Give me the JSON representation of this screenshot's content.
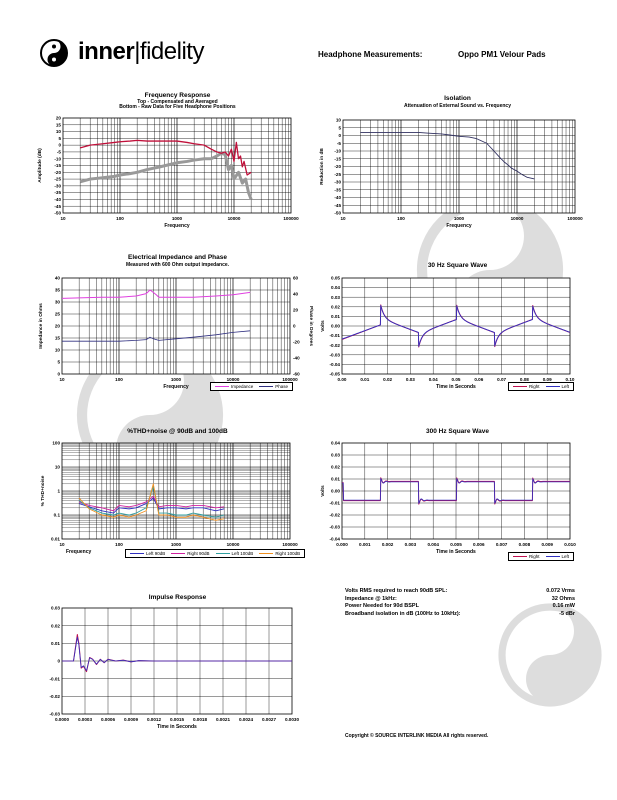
{
  "header": {
    "brand_left": "inner",
    "brand_right": "fidelity",
    "measurements_label": "Headphone Measurements:",
    "product": "Oppo PM1 Velour Pads"
  },
  "charts": {
    "freq": {
      "title": "Frequency Response",
      "subtitle1": "Top - Compensated and Averaged",
      "subtitle2": "Bottom - Raw Data for Five Headphone Positions",
      "ylabel": "Amplitude (dB)",
      "xlabel": "Frequency"
    },
    "iso": {
      "title": "Isolation",
      "subtitle1": "Attenuation of External Sound vs. Frequency",
      "ylabel": "Reduction in dB",
      "xlabel": "Frequency"
    },
    "imp": {
      "title": "Electrical Impedance and Phase",
      "subtitle1": "Measured with 600 Ohm output impedance.",
      "ylabel": "Impedance in Ohms",
      "ylabel2": "Phase in Degrees",
      "xlabel": "Frequency",
      "legend_impedance": "Impedance",
      "legend_phase": "Phase"
    },
    "sq30": {
      "title": "30 Hz Square Wave",
      "ylabel": "Volts",
      "xlabel": "Time in Seconds",
      "legend_right": "Right",
      "legend_left": "Left"
    },
    "thd": {
      "title": "%THD+noise @ 90dB and 100dB",
      "ylabel": "% THD+noise",
      "xlabel": "Frequency",
      "legend": [
        "Left 90dB",
        "Right 90dB",
        "Left 100dB",
        "Right 100dB"
      ]
    },
    "sq300": {
      "title": "300 Hz Square Wave",
      "ylabel": "Volts",
      "xlabel": "Time in Seconds",
      "legend_right": "Right",
      "legend_left": "Left"
    },
    "imp_resp": {
      "title": "Impulse Response",
      "xlabel": "Time in Seconds"
    }
  },
  "specs": [
    {
      "label": "Volts RMS required to reach 90dB SPL:",
      "value": "0.072 Vrms"
    },
    {
      "label": "Impedance @ 1kHz:",
      "value": "32 Ohms"
    },
    {
      "label": "Power Needed for 90d BSPL",
      "value": "0.16 mW"
    },
    {
      "label": "Broadband isolation in dB (100Hz to 10kHz):",
      "value": "-5 dBr"
    }
  ],
  "copyright": "Copyright © SOURCE INTERLINK MEDIA All rights reserved.",
  "colors": {
    "compensated": "#c0103a",
    "raw": "#999999",
    "left": "#3030c0",
    "right": "#c01050",
    "impedance": "#e040e0",
    "phase": "#303080",
    "thd_left90": "#3030c0",
    "thd_right90": "#d020a0",
    "thd_left100": "#30a0a0",
    "thd_right100": "#f09020"
  },
  "chart_data": [
    {
      "id": "freq",
      "type": "line",
      "xscale": "log",
      "xlim": [
        10,
        100000
      ],
      "ylim": [
        -50,
        20
      ],
      "xticks": [
        "10",
        "100",
        "1000",
        "10000",
        "100000"
      ],
      "yticks": [
        "20",
        "15",
        "10",
        "5",
        "0",
        "-5",
        "-10",
        "-15",
        "-20",
        "-25",
        "-30",
        "-35",
        "-40",
        "-45",
        "-50"
      ],
      "series": [
        {
          "role": "compensated",
          "x": [
            20,
            30,
            50,
            80,
            100,
            150,
            200,
            300,
            500,
            800,
            1000,
            1500,
            2000,
            3000,
            4000,
            5000,
            6000,
            7000,
            8000,
            9000,
            10000,
            11000,
            12000,
            13000,
            14000,
            15000,
            17000,
            20000
          ],
          "y": [
            -2,
            0,
            1,
            2,
            2.5,
            3,
            3.5,
            3,
            3,
            3,
            3,
            2,
            1,
            0,
            -3,
            -5,
            -6,
            -5,
            -8,
            -3,
            -12,
            2,
            -10,
            -8,
            -16,
            -12,
            -22,
            -20
          ]
        },
        {
          "role": "raw",
          "x": [
            20,
            30,
            50,
            80,
            100,
            150,
            200,
            300,
            500,
            800,
            1000,
            1500,
            2000,
            3000,
            4000,
            5000,
            6000,
            7000,
            8000,
            9000,
            10000,
            12000,
            14000,
            16000,
            18000,
            20000
          ],
          "y": [
            -27,
            -25,
            -24,
            -23,
            -22,
            -21,
            -20,
            -18,
            -16,
            -14,
            -13,
            -12,
            -11,
            -10,
            -10,
            -8,
            -6,
            -7,
            -18,
            -15,
            -25,
            -20,
            -28,
            -25,
            -35,
            -40
          ]
        }
      ]
    },
    {
      "id": "iso",
      "type": "line",
      "xscale": "log",
      "xlim": [
        10,
        100000
      ],
      "ylim": [
        -50,
        10
      ],
      "xticks": [
        "10",
        "100",
        "1000",
        "10000",
        "100000"
      ],
      "yticks": [
        "10",
        "5",
        "0",
        "-5",
        "-10",
        "-15",
        "-20",
        "-25",
        "-30",
        "-35",
        "-40",
        "-45",
        "-50"
      ],
      "series": [
        {
          "role": "isolation",
          "x": [
            20,
            30,
            50,
            100,
            200,
            300,
            500,
            800,
            1000,
            1500,
            2000,
            3000,
            4000,
            5000,
            6000,
            7000,
            8000,
            10000,
            12000,
            15000,
            20000
          ],
          "y": [
            2,
            2,
            2,
            2,
            2,
            1.5,
            1,
            0,
            -0.5,
            -1,
            -2,
            -5,
            -10,
            -14,
            -17,
            -19,
            -21,
            -23,
            -25,
            -27,
            -28
          ]
        }
      ]
    },
    {
      "id": "imp",
      "type": "line",
      "xscale": "log",
      "xlim": [
        10,
        100000
      ],
      "ylim": [
        0,
        40
      ],
      "y2lim": [
        -60,
        60
      ],
      "xticks": [
        "10",
        "100",
        "1000",
        "10000",
        "100000"
      ],
      "yticks": [
        "40",
        "35",
        "30",
        "25",
        "20",
        "15",
        "10",
        "5",
        "0"
      ],
      "y2ticks": [
        "60",
        "40",
        "20",
        "0",
        "-20",
        "-40",
        "-60"
      ],
      "series": [
        {
          "name": "Impedance",
          "axis": "y",
          "x": [
            10,
            20,
            50,
            100,
            200,
            300,
            350,
            400,
            450,
            500,
            700,
            1000,
            2000,
            5000,
            10000,
            20000
          ],
          "y": [
            31.5,
            31.7,
            32,
            32,
            32.5,
            33.5,
            35,
            34,
            33,
            32,
            32,
            32,
            32,
            32.5,
            33,
            34
          ]
        },
        {
          "name": "Phase",
          "axis": "y2",
          "x": [
            10,
            20,
            50,
            100,
            200,
            300,
            350,
            400,
            450,
            500,
            700,
            1000,
            2000,
            5000,
            10000,
            20000
          ],
          "y": [
            -19,
            -19,
            -19,
            -19,
            -18,
            -17,
            -14,
            -16,
            -17,
            -18,
            -17,
            -16,
            -14,
            -11,
            -8,
            -6
          ]
        }
      ]
    },
    {
      "id": "sq30",
      "type": "line",
      "xlim": [
        0,
        0.1
      ],
      "ylim": [
        -0.05,
        0.05
      ],
      "xticks": [
        "0.00",
        "0.01",
        "0.02",
        "0.03",
        "0.04",
        "0.05",
        "0.06",
        "0.07",
        "0.08",
        "0.09",
        "0.10"
      ],
      "yticks": [
        "0.05",
        "0.04",
        "0.03",
        "0.02",
        "0.01",
        "0.00",
        "-0.01",
        "-0.02",
        "-0.03",
        "-0.04",
        "-0.05"
      ],
      "period": 0.0333,
      "shape": {
        "peak": 0.022,
        "settle": 0.008,
        "trough": -0.022,
        "settle_neg": -0.008,
        "first_edge": 0.017
      }
    },
    {
      "id": "thd",
      "type": "line",
      "xscale": "log",
      "yscale": "log",
      "xlim": [
        10,
        100000
      ],
      "ylim": [
        0.01,
        100
      ],
      "xticks": [
        "10",
        "100",
        "1000",
        "10000",
        "100000"
      ],
      "yticks": [
        "100",
        "10",
        "1",
        "0.1",
        "0.01"
      ],
      "series": [
        {
          "name": "Left 90dB",
          "x": [
            20,
            30,
            50,
            80,
            100,
            150,
            200,
            300,
            400,
            500,
            700,
            1000,
            1500,
            2000,
            3000,
            5000,
            7000
          ],
          "y": [
            0.3,
            0.22,
            0.15,
            0.12,
            0.2,
            0.18,
            0.2,
            0.3,
            0.5,
            0.18,
            0.2,
            0.2,
            0.18,
            0.2,
            0.2,
            0.15,
            0.18
          ]
        },
        {
          "name": "Right 90dB",
          "x": [
            20,
            30,
            50,
            80,
            100,
            150,
            200,
            300,
            400,
            500,
            700,
            1000,
            1500,
            2000,
            3000,
            5000,
            7000
          ],
          "y": [
            0.35,
            0.25,
            0.2,
            0.15,
            0.25,
            0.22,
            0.25,
            0.35,
            0.6,
            0.22,
            0.25,
            0.25,
            0.22,
            0.25,
            0.25,
            0.2,
            0.22
          ]
        },
        {
          "name": "Left 100dB",
          "x": [
            20,
            30,
            50,
            80,
            100,
            150,
            200,
            300,
            400,
            500,
            700,
            1000,
            1500,
            2000,
            3000,
            5000,
            7000
          ],
          "y": [
            0.4,
            0.2,
            0.12,
            0.1,
            0.12,
            0.1,
            0.12,
            0.2,
            1.5,
            0.12,
            0.12,
            0.1,
            0.1,
            0.12,
            0.1,
            0.08,
            0.1
          ]
        },
        {
          "name": "Right 100dB",
          "x": [
            20,
            30,
            50,
            80,
            100,
            150,
            200,
            300,
            400,
            500,
            700,
            1000,
            1500,
            2000,
            3000,
            5000,
            7000
          ],
          "y": [
            0.5,
            0.18,
            0.1,
            0.08,
            0.1,
            0.08,
            0.1,
            0.15,
            2,
            0.1,
            0.1,
            0.08,
            0.08,
            0.1,
            0.08,
            0.06,
            0.07
          ]
        }
      ]
    },
    {
      "id": "sq300",
      "type": "line",
      "xlim": [
        0,
        0.01
      ],
      "ylim": [
        -0.04,
        0.04
      ],
      "xticks": [
        "0.000",
        "0.001",
        "0.002",
        "0.003",
        "0.004",
        "0.005",
        "0.006",
        "0.007",
        "0.008",
        "0.009",
        "0.010"
      ],
      "yticks": [
        "0.04",
        "0.03",
        "0.02",
        "0.01",
        "0.00",
        "-0.01",
        "-0.02",
        "-0.03",
        "-0.04"
      ],
      "period": 0.00333,
      "shape": {
        "high": 0.008,
        "low": -0.008,
        "overshoot": 0.011,
        "first_edge": 0.0017
      }
    },
    {
      "id": "imp_resp",
      "type": "line",
      "xlim": [
        0,
        0.003
      ],
      "ylim": [
        -0.03,
        0.03
      ],
      "xticks": [
        "0.0000",
        "0.0003",
        "0.0006",
        "0.0009",
        "0.0012",
        "0.0015",
        "0.0018",
        "0.0021",
        "0.0024",
        "0.0027",
        "0.0030"
      ],
      "yticks": [
        "0.03",
        "0.02",
        "0.01",
        "0",
        "-0.01",
        "-0.02",
        "-0.03"
      ],
      "series": [
        {
          "role": "impulse",
          "x": [
            0,
            0.00015,
            0.0002,
            0.00022,
            0.00025,
            0.00028,
            0.00032,
            0.00036,
            0.0004,
            0.00045,
            0.0005,
            0.00055,
            0.0006,
            0.0007,
            0.0008,
            0.0009,
            0.001,
            0.0012,
            0.0015,
            0.002,
            0.003
          ],
          "y": [
            0,
            0,
            0.015,
            0.01,
            -0.004,
            -0.003,
            -0.006,
            0.002,
            0.001,
            -0.002,
            0.001,
            -0.001,
            0.001,
            0,
            0.0005,
            -0.0005,
            0.0002,
            0,
            0,
            0,
            0
          ]
        }
      ]
    }
  ]
}
